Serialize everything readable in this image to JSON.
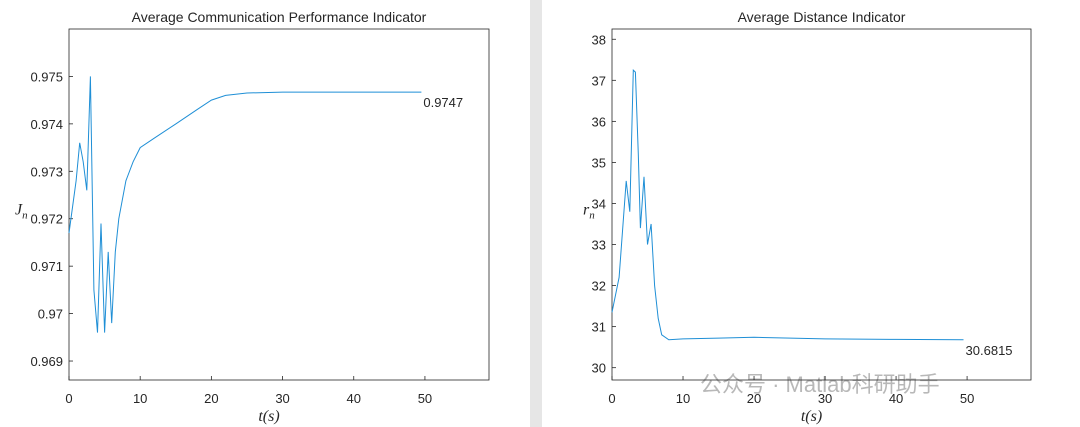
{
  "charts": [
    {
      "chart_data": {
        "type": "line",
        "title": "Average Communication Performance Indicator",
        "xlabel": "t(s)",
        "ylabel": "J",
        "ylabel_sub": "n",
        "xlim": [
          0,
          59
        ],
        "ylim": [
          0.9686,
          0.976
        ],
        "xticks": [
          0,
          10,
          20,
          30,
          40,
          50
        ],
        "yticks": [
          0.969,
          0.97,
          0.971,
          0.972,
          0.973,
          0.974,
          0.975
        ],
        "series": [
          {
            "color": "#1f8fd6",
            "x": [
              0,
              1,
              1.5,
              2,
              2.5,
              3,
              3.5,
              4,
              4.5,
              5,
              5.5,
              6,
              6.5,
              7,
              8,
              9,
              10,
              12,
              15,
              18,
              20,
              22,
              25,
              30,
              40,
              49.5
            ],
            "values": [
              0.9717,
              0.9728,
              0.9736,
              0.9732,
              0.9726,
              0.975,
              0.9705,
              0.9696,
              0.9719,
              0.9696,
              0.9713,
              0.9698,
              0.9713,
              0.972,
              0.9728,
              0.9732,
              0.9735,
              0.9737,
              0.974,
              0.9743,
              0.9745,
              0.9746,
              0.97465,
              0.97467,
              0.97467,
              0.97467
            ]
          }
        ],
        "end_label": "0.9747"
      }
    },
    {
      "chart_data": {
        "type": "line",
        "title": "Average Distance Indicator",
        "xlabel": "t(s)",
        "ylabel": "r",
        "ylabel_sub": "n",
        "xlim": [
          0,
          59
        ],
        "ylim": [
          29.7,
          38.25
        ],
        "xticks": [
          0,
          10,
          20,
          30,
          40,
          50
        ],
        "yticks": [
          30,
          31,
          32,
          33,
          34,
          35,
          36,
          37,
          38
        ],
        "series": [
          {
            "color": "#1f8fd6",
            "x": [
              0,
              1,
              2,
              2.5,
              3,
              3.3,
              3.7,
              4,
              4.5,
              5,
              5.5,
              6,
              6.5,
              7,
              8,
              10,
              15,
              20,
              30,
              40,
              49.5
            ],
            "values": [
              31.35,
              32.2,
              34.55,
              33.8,
              37.25,
              37.2,
              35.2,
              33.4,
              34.65,
              33.0,
              33.5,
              32.0,
              31.2,
              30.8,
              30.68,
              30.7,
              30.72,
              30.74,
              30.7,
              30.69,
              30.68
            ]
          }
        ],
        "end_label": "30.6815"
      }
    }
  ],
  "watermark": "公众号 · Matlab科研助手"
}
